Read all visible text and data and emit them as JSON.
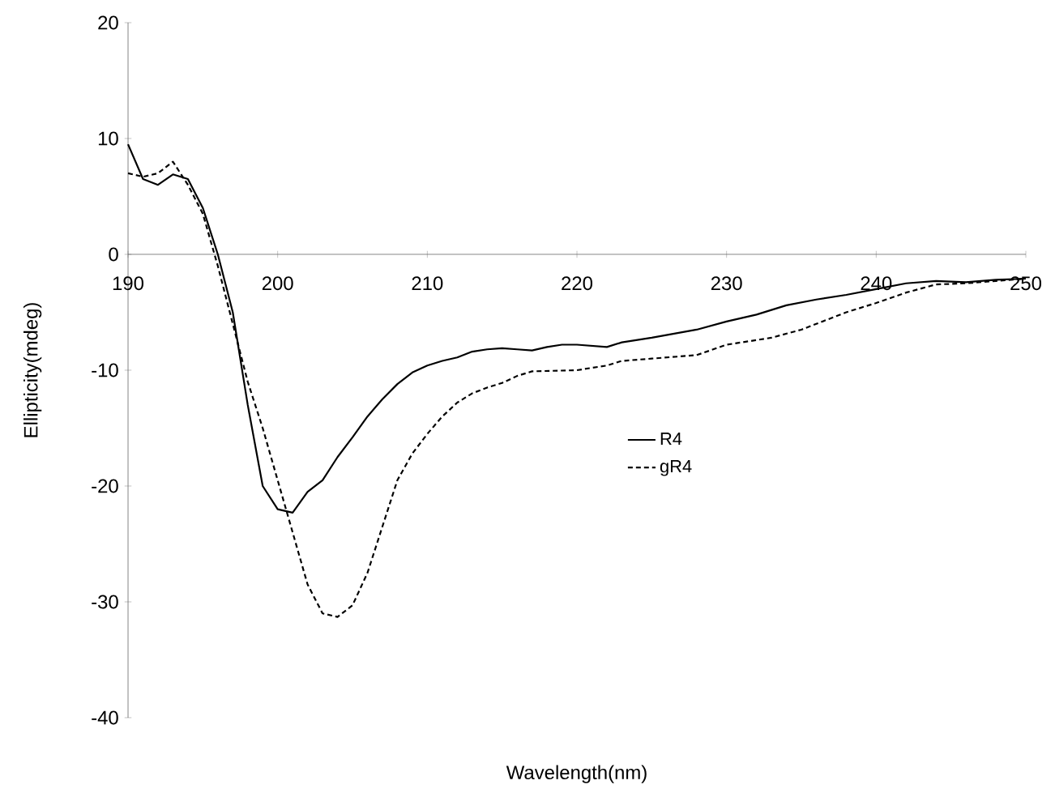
{
  "chart_data": {
    "type": "line",
    "xlabel": "Wavelength(nm)",
    "ylabel": "Ellipticity(mdeg)",
    "xlim": [
      190,
      250
    ],
    "ylim": [
      -40,
      20
    ],
    "xticks": [
      190,
      200,
      210,
      220,
      230,
      240,
      250
    ],
    "yticks": [
      -40,
      -30,
      -20,
      -10,
      0,
      10,
      20
    ],
    "grid": false,
    "legend": "right",
    "marker": "none",
    "series": [
      {
        "name": "R4",
        "color": "#000000",
        "line_style": "solid",
        "x": [
          190,
          191,
          192,
          193,
          194,
          195,
          196,
          197,
          198,
          199,
          200,
          201,
          202,
          203,
          204,
          205,
          206,
          207,
          208,
          209,
          210,
          211,
          212,
          213,
          214,
          215,
          216,
          217,
          218,
          219,
          220,
          222,
          223,
          225,
          228,
          230,
          232,
          234,
          236,
          238,
          240,
          242,
          244,
          246,
          248,
          250
        ],
        "values": [
          9.5,
          6.5,
          6,
          6.9,
          6.5,
          4,
          0,
          -5,
          -13,
          -20,
          -22,
          -22.3,
          -20.5,
          -19.5,
          -17.5,
          -15.8,
          -14,
          -12.5,
          -11.2,
          -10.2,
          -9.6,
          -9.2,
          -8.9,
          -8.4,
          -8.2,
          -8.1,
          -8.2,
          -8.3,
          -8,
          -7.8,
          -7.8,
          -8,
          -7.6,
          -7.2,
          -6.5,
          -5.8,
          -5.2,
          -4.4,
          -3.9,
          -3.5,
          -3,
          -2.5,
          -2.3,
          -2.4,
          -2.2,
          -2.1
        ]
      },
      {
        "name": "gR4",
        "color": "#000000",
        "line_style": "dashed",
        "x": [
          190,
          191,
          192,
          193,
          194,
          195,
          196,
          197,
          198,
          199,
          200,
          201,
          202,
          203,
          204,
          205,
          206,
          207,
          208,
          209,
          210,
          211,
          212,
          213,
          214,
          215,
          216,
          217,
          220,
          222,
          223,
          225,
          228,
          230,
          233,
          235,
          238,
          240,
          242,
          244,
          246,
          248,
          250
        ],
        "values": [
          7,
          6.7,
          7,
          8,
          6,
          3.5,
          -1,
          -6,
          -11,
          -15,
          -19.5,
          -24,
          -28.5,
          -31,
          -31.3,
          -30.3,
          -27.5,
          -23.5,
          -19.5,
          -17.2,
          -15.5,
          -14,
          -12.8,
          -12,
          -11.5,
          -11.1,
          -10.5,
          -10.1,
          -10,
          -9.6,
          -9.2,
          -9,
          -8.7,
          -7.8,
          -7.2,
          -6.5,
          -5,
          -4.2,
          -3.3,
          -2.6,
          -2.5,
          -2.3,
          -2.1
        ]
      }
    ]
  }
}
